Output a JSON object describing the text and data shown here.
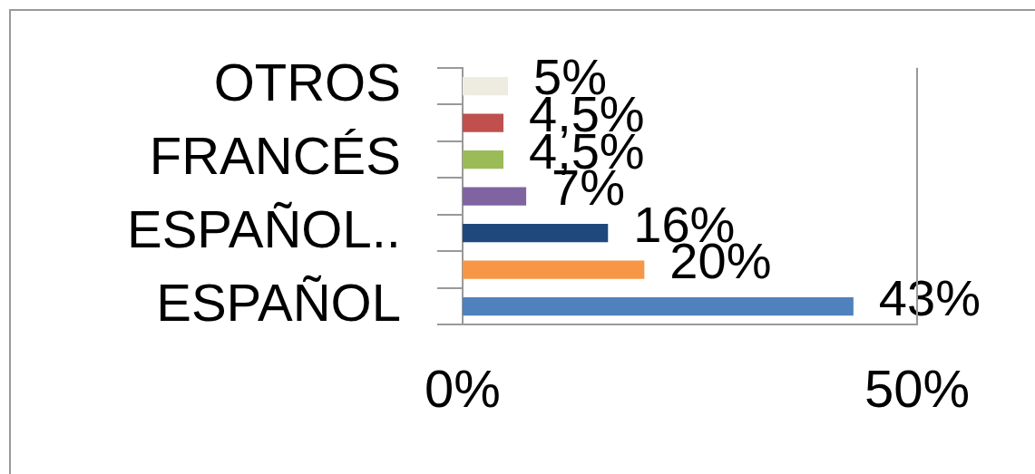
{
  "chart_data": {
    "type": "bar",
    "orientation": "horizontal",
    "categories": [
      "OTROS",
      null,
      "FRANCÉS",
      null,
      "ESPAÑOL..",
      null,
      "ESPAÑOL"
    ],
    "values": [
      5,
      4.5,
      4.5,
      7,
      16,
      20,
      43
    ],
    "value_labels": [
      "5%",
      "4,5%",
      "4,5%",
      "7%",
      "16%",
      "20%",
      "43%"
    ],
    "colors": [
      "#eeece1",
      "#c0504d",
      "#9bbb59",
      "#8064a2",
      "#1f497d",
      "#f79646",
      "#4f81bd"
    ],
    "xlim": [
      0,
      50
    ],
    "xticks": [
      {
        "value": 0,
        "label": "0%"
      },
      {
        "value": 50,
        "label": "50%"
      }
    ],
    "legend": false
  }
}
